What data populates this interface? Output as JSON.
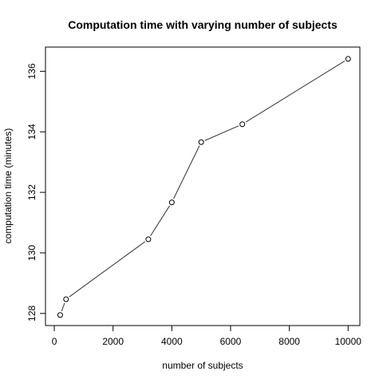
{
  "chart_data": {
    "type": "line",
    "title": "Computation time with varying number of subjects",
    "xlabel": "number of subjects",
    "ylabel": "computation time (minutes)",
    "xlim": [
      -300,
      10400
    ],
    "ylim": [
      127.6,
      136.8
    ],
    "x_ticks": [
      0,
      2000,
      4000,
      6000,
      8000,
      10000
    ],
    "x_tick_labels": [
      "0",
      "2000",
      "4000",
      "6000",
      "8000",
      "10000"
    ],
    "y_ticks": [
      128,
      130,
      132,
      134,
      136
    ],
    "y_tick_labels": [
      "128",
      "130",
      "132",
      "134",
      "136"
    ],
    "grid": false,
    "marker": "open-circle",
    "line_color": "#333333",
    "series": [
      {
        "x": [
          200,
          400,
          3200,
          4000,
          5000,
          6400,
          10000
        ],
        "y": [
          127.95,
          128.47,
          130.45,
          131.67,
          133.66,
          134.25,
          136.41
        ]
      }
    ]
  }
}
